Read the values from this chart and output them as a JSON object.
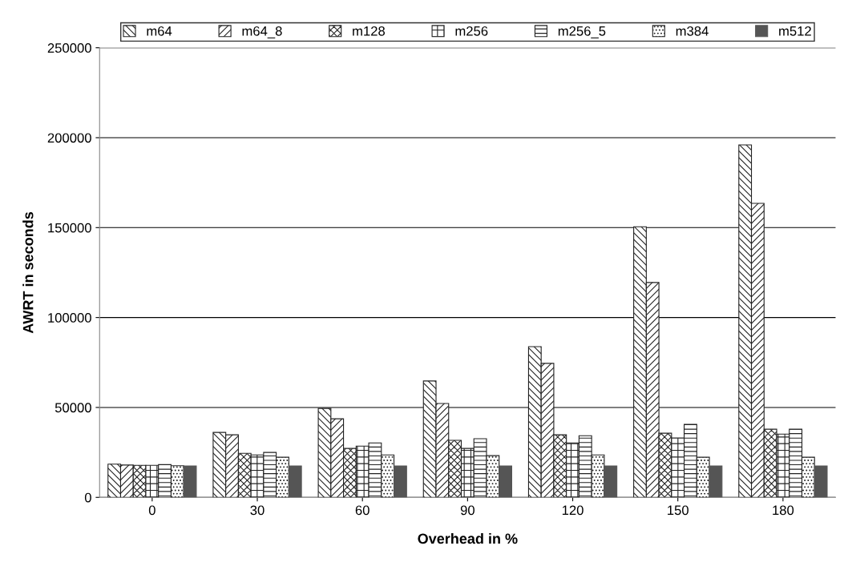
{
  "chart_data": {
    "type": "bar",
    "xlabel": "Overhead in %",
    "ylabel": "AWRT in seconds",
    "categories": [
      "0",
      "30",
      "60",
      "90",
      "120",
      "150",
      "180"
    ],
    "series": [
      {
        "name": "m64",
        "color": "#222222",
        "values": [
          18500,
          36100,
          49500,
          64700,
          83800,
          150500,
          196000
        ]
      },
      {
        "name": "m64_8",
        "color": "#222222",
        "values": [
          18000,
          34800,
          43700,
          52200,
          74500,
          119500,
          163500
        ]
      },
      {
        "name": "m128",
        "color": "#222222",
        "values": [
          17800,
          24500,
          27200,
          31700,
          34800,
          35700,
          37900
        ]
      },
      {
        "name": "m256",
        "color": "#222222",
        "values": [
          17800,
          23600,
          28500,
          27200,
          30300,
          33000,
          35200
        ]
      },
      {
        "name": "m256_5",
        "color": "#222222",
        "values": [
          18200,
          25000,
          30300,
          32600,
          34300,
          40600,
          37900
        ]
      },
      {
        "name": "m384",
        "color": "#222222",
        "values": [
          17600,
          22300,
          23600,
          23200,
          23600,
          22300,
          22300
        ]
      },
      {
        "name": "m512",
        "color": "#555555",
        "values": [
          17500,
          17500,
          17500,
          17500,
          17500,
          17500,
          17500
        ]
      }
    ],
    "ylim": [
      0,
      250000
    ],
    "yticks": [
      0,
      50000,
      100000,
      150000,
      200000,
      250000
    ],
    "grid": "y",
    "legend": "top"
  }
}
